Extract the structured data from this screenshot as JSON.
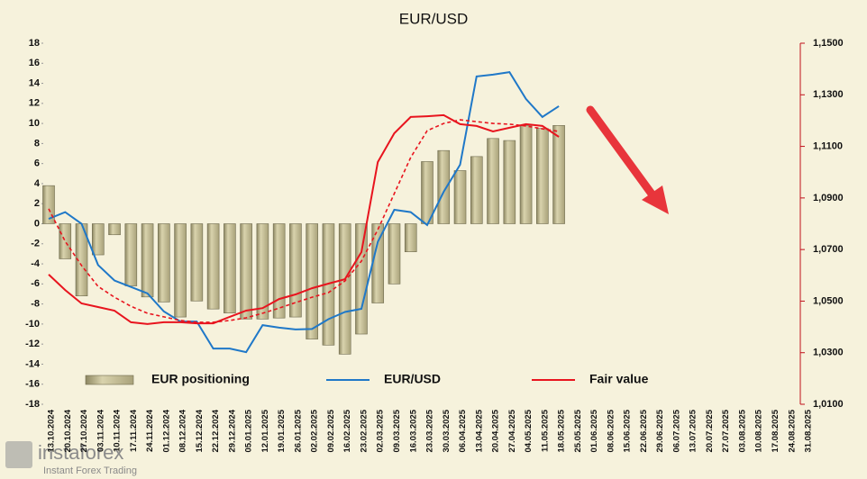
{
  "chart_data": {
    "type": "bar-line",
    "title": "EUR/USD",
    "categories": [
      "13.10.2024",
      "20.10.2024",
      "27.10.2024",
      "03.11.2024",
      "10.11.2024",
      "17.11.2024",
      "24.11.2024",
      "01.12.2024",
      "08.12.2024",
      "15.12.2024",
      "22.12.2024",
      "29.12.2024",
      "05.01.2025",
      "12.01.2025",
      "19.01.2025",
      "26.01.2025",
      "02.02.2025",
      "09.02.2025",
      "16.02.2025",
      "23.02.2025",
      "02.03.2025",
      "09.03.2025",
      "16.03.2025",
      "23.03.2025",
      "30.03.2025",
      "06.04.2025",
      "13.04.2025",
      "20.04.2025",
      "27.04.2025",
      "04.05.2025",
      "11.05.2025",
      "18.05.2025",
      "25.05.2025",
      "01.06.2025",
      "08.06.2025",
      "15.06.2025",
      "22.06.2025",
      "29.06.2025",
      "06.07.2025",
      "13.07.2025",
      "20.07.2025",
      "27.07.2025",
      "03.08.2025",
      "10.08.2025",
      "17.08.2025",
      "24.08.2025",
      "31.08.2025"
    ],
    "series": [
      {
        "name": "EUR positioning",
        "kind": "bar",
        "color": "#c8c198",
        "axis": "y",
        "values": [
          3.8,
          -3.5,
          -7.2,
          -3.1,
          -1.1,
          -6.2,
          -7.3,
          -7.8,
          -9.3,
          -7.7,
          -8.5,
          -8.9,
          -9.5,
          -9.5,
          -9.4,
          -9.3,
          -11.5,
          -12.1,
          -13,
          -11,
          -7.9,
          -6,
          -2.8,
          6.2,
          7.3,
          5.3,
          6.7,
          8.5,
          8.3,
          9.8,
          9.5,
          9.8,
          null,
          null,
          null,
          null,
          null,
          null,
          null,
          null,
          null,
          null,
          null,
          null,
          null,
          null,
          null
        ]
      },
      {
        "name": "EUR/USD",
        "kind": "line",
        "color": "#1f78c8",
        "axis": "y2",
        "values": [
          1.0819,
          1.0845,
          1.08,
          1.064,
          1.058,
          1.0555,
          1.053,
          1.046,
          1.0421,
          1.0421,
          1.0316,
          1.0316,
          1.0302,
          1.0407,
          1.0397,
          1.039,
          1.0392,
          1.043,
          1.0458,
          1.047,
          1.073,
          1.0854,
          1.0845,
          1.0795,
          1.0924,
          1.1029,
          1.1371,
          1.1378,
          1.1388,
          1.1284,
          1.1214,
          1.1256,
          null,
          null,
          null,
          null,
          null,
          null,
          null,
          null,
          null,
          null,
          null,
          null,
          null,
          null,
          null
        ]
      },
      {
        "name": "Fair value",
        "kind": "line",
        "color": "#e8141e",
        "axis": "y2",
        "values": [
          1.0603,
          1.0543,
          1.0491,
          1.0477,
          1.0463,
          1.0418,
          1.0411,
          1.0418,
          1.0418,
          1.0414,
          1.0414,
          1.0439,
          1.0463,
          1.0473,
          1.0508,
          1.0526,
          1.055,
          1.0568,
          1.0585,
          1.069,
          1.1039,
          1.1151,
          1.1214,
          1.1217,
          1.1221,
          1.1186,
          1.1179,
          1.1158,
          1.1172,
          1.1186,
          1.1179,
          1.1137,
          null,
          null,
          null,
          null,
          null,
          null,
          null,
          null,
          null,
          null,
          null,
          null,
          null,
          null,
          null
        ]
      },
      {
        "kind": "line",
        "dashed": true,
        "color": "#e8141e",
        "axis": "y2",
        "values": [
          1.0858,
          1.0732,
          1.0638,
          1.0557,
          1.0515,
          1.048,
          1.0453,
          1.0439,
          1.0425,
          1.0418,
          1.0418,
          1.0425,
          1.0435,
          1.0453,
          1.0473,
          1.0494,
          1.0515,
          1.0533,
          1.0578,
          1.0655,
          1.0777,
          1.0917,
          1.1057,
          1.1161,
          1.1189,
          1.1203,
          1.1196,
          1.1189,
          1.1186,
          1.1179,
          1.1168,
          1.1158,
          null,
          null,
          null,
          null,
          null,
          null,
          null,
          null,
          null,
          null,
          null,
          null,
          null,
          null,
          null
        ]
      }
    ],
    "ylim": [
      -18,
      18
    ],
    "yticks": [
      -18,
      -16,
      -14,
      -12,
      -10,
      -8,
      -6,
      -4,
      -2,
      0,
      2,
      4,
      6,
      8,
      10,
      12,
      14,
      16,
      18
    ],
    "y2lim": [
      1.01,
      1.15
    ],
    "y2ticks": [
      {
        "value": 1.01,
        "label": "1,0100"
      },
      {
        "value": 1.03,
        "label": "1,0300"
      },
      {
        "value": 1.05,
        "label": "1,0500"
      },
      {
        "value": 1.07,
        "label": "1,0700"
      },
      {
        "value": 1.09,
        "label": "1,0900"
      },
      {
        "value": 1.11,
        "label": "1,1100"
      },
      {
        "value": 1.13,
        "label": "1,1300"
      },
      {
        "value": 1.15,
        "label": "1,1500"
      }
    ],
    "legend": "bottom",
    "grid": false
  },
  "watermark": {
    "brand": "instaforex",
    "tagline": "Instant Forex Trading"
  }
}
